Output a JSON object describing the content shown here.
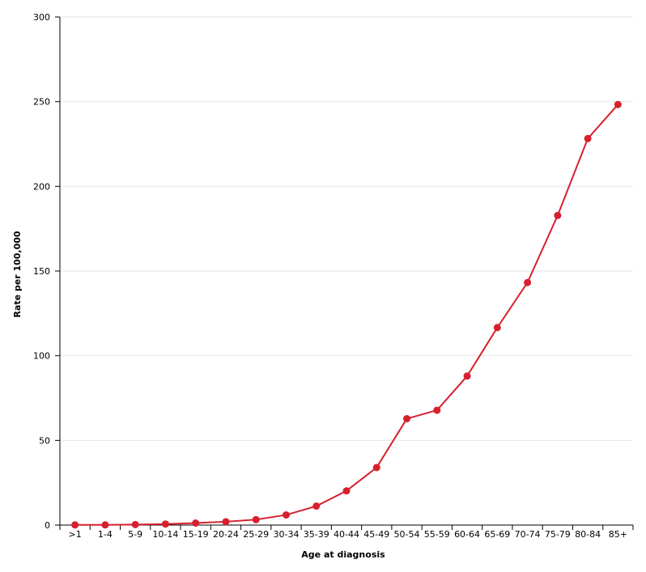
{
  "chart_data": {
    "type": "line",
    "title": "",
    "xlabel": "Age at diagnosis",
    "ylabel": "Rate per 100,000",
    "ylim": [
      0,
      300
    ],
    "yticks": [
      0,
      50,
      100,
      150,
      200,
      250,
      300
    ],
    "grid": true,
    "categories": [
      ">1",
      "1-4",
      "5-9",
      "10-14",
      "15-19",
      "20-24",
      "25-29",
      "30-34",
      "35-39",
      "40-44",
      "45-49",
      "50-54",
      "55-59",
      "60-64",
      "65-69",
      "70-74",
      "75-79",
      "80-84",
      "85+"
    ],
    "series": [
      {
        "color": "#d7202e",
        "values": [
          0.1,
          0.1,
          0.3,
          0.6,
          1.2,
          2.0,
          3.2,
          6.0,
          11.2,
          20.2,
          34.0,
          62.8,
          67.8,
          88.0,
          116.6,
          143.2,
          182.8,
          228.2,
          248.3
        ]
      }
    ]
  }
}
